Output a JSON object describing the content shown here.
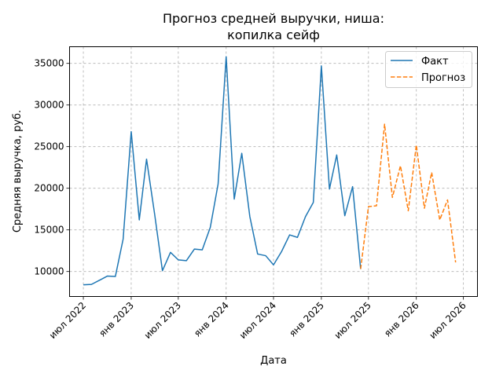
{
  "chart_data": {
    "type": "line",
    "title_lines": [
      "Прогноз средней выручки, ниша:",
      "копилка сейф"
    ],
    "xlabel": "Дата",
    "ylabel": "Средняя выручка, руб.",
    "xlim": [
      "2022-05-09",
      "2026-08-24"
    ],
    "ylim": [
      7000,
      37000
    ],
    "x_ticks": [
      {
        "date": "2022-07-01",
        "label": "июл 2022"
      },
      {
        "date": "2023-01-01",
        "label": "янв 2023"
      },
      {
        "date": "2023-07-01",
        "label": "июл 2023"
      },
      {
        "date": "2024-01-01",
        "label": "янв 2024"
      },
      {
        "date": "2024-07-01",
        "label": "июл 2024"
      },
      {
        "date": "2025-01-01",
        "label": "янв 2025"
      },
      {
        "date": "2025-07-01",
        "label": "июл 2025"
      },
      {
        "date": "2026-01-01",
        "label": "янв 2026"
      },
      {
        "date": "2026-07-01",
        "label": "июл 2026"
      }
    ],
    "y_ticks": [
      10000,
      15000,
      20000,
      25000,
      30000,
      35000
    ],
    "grid": true,
    "legend_position": "top-right",
    "series": [
      {
        "name": "Факт",
        "color": "#1f77b4",
        "style": "solid",
        "points": [
          [
            "2022-07-01",
            8400
          ],
          [
            "2022-08-01",
            8450
          ],
          [
            "2022-09-01",
            8950
          ],
          [
            "2022-10-01",
            9450
          ],
          [
            "2022-11-01",
            9400
          ],
          [
            "2022-12-01",
            13900
          ],
          [
            "2023-01-01",
            26800
          ],
          [
            "2023-02-01",
            16200
          ],
          [
            "2023-03-01",
            23500
          ],
          [
            "2023-04-01",
            16900
          ],
          [
            "2023-05-01",
            10100
          ],
          [
            "2023-06-01",
            12300
          ],
          [
            "2023-07-01",
            11400
          ],
          [
            "2023-08-01",
            11300
          ],
          [
            "2023-09-01",
            12700
          ],
          [
            "2023-10-01",
            12600
          ],
          [
            "2023-11-01",
            15300
          ],
          [
            "2023-12-01",
            20500
          ],
          [
            "2024-01-01",
            35800
          ],
          [
            "2024-02-01",
            18700
          ],
          [
            "2024-03-01",
            24200
          ],
          [
            "2024-04-01",
            16600
          ],
          [
            "2024-05-01",
            12100
          ],
          [
            "2024-06-01",
            11900
          ],
          [
            "2024-07-01",
            10800
          ],
          [
            "2024-08-01",
            12400
          ],
          [
            "2024-09-01",
            14400
          ],
          [
            "2024-10-01",
            14100
          ],
          [
            "2024-11-01",
            16600
          ],
          [
            "2024-12-01",
            18300
          ],
          [
            "2025-01-01",
            34700
          ],
          [
            "2025-02-01",
            19900
          ],
          [
            "2025-03-01",
            24000
          ],
          [
            "2025-04-01",
            16700
          ],
          [
            "2025-05-01",
            20200
          ],
          [
            "2025-06-01",
            10300
          ]
        ]
      },
      {
        "name": "Прогноз",
        "color": "#ff7f0e",
        "style": "dashed",
        "points": [
          [
            "2025-06-01",
            10300
          ],
          [
            "2025-07-01",
            17800
          ],
          [
            "2025-08-01",
            17900
          ],
          [
            "2025-09-01",
            27700
          ],
          [
            "2025-10-01",
            18900
          ],
          [
            "2025-11-01",
            22700
          ],
          [
            "2025-12-01",
            17300
          ],
          [
            "2026-01-01",
            25200
          ],
          [
            "2026-02-01",
            17600
          ],
          [
            "2026-03-01",
            21900
          ],
          [
            "2026-04-01",
            16200
          ],
          [
            "2026-05-01",
            18600
          ],
          [
            "2026-06-01",
            11100
          ]
        ]
      }
    ]
  }
}
